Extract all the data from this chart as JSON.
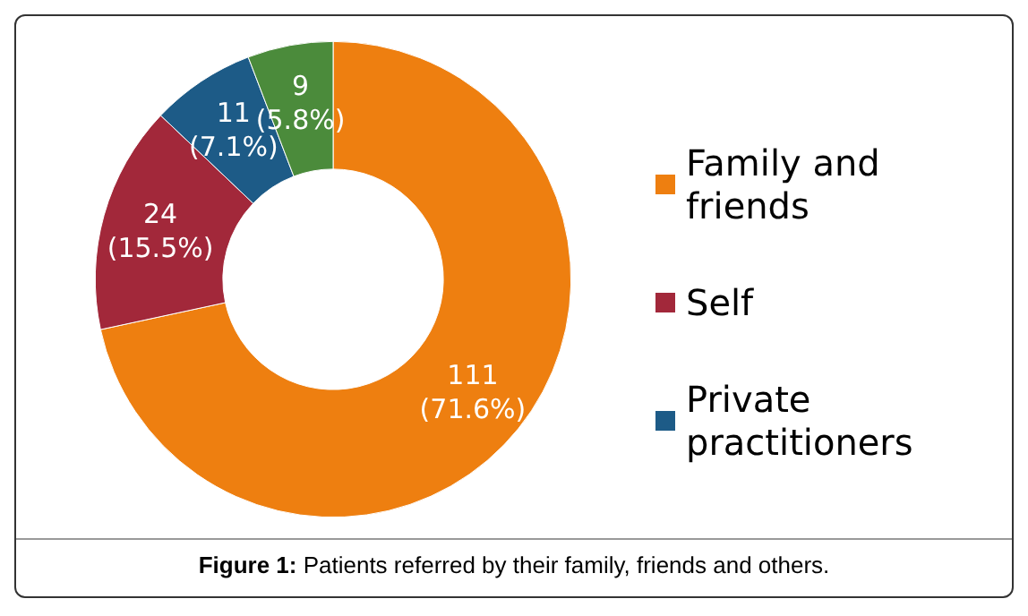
{
  "chart_data": {
    "type": "donut",
    "categories": [
      "Family and friends",
      "Self",
      "Private practitioners",
      null
    ],
    "values": [
      111,
      24,
      11,
      9
    ],
    "colors": [
      "#ee7f10",
      "#a2283a",
      "#1d5b87",
      "#4b8b3b"
    ],
    "value_labels": [
      "111 (71.6%)",
      "24 (15.5%)",
      "11 (7.1%)",
      "9 (5.8%)"
    ],
    "legend": "right",
    "annotations": [
      "Figure 1: Patients referred by their family, friends and others."
    ]
  }
}
